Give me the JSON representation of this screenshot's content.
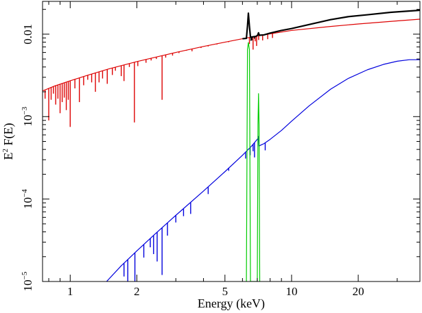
{
  "chart_data": {
    "type": "line",
    "title": "",
    "xlabel": "Energy (keV)",
    "ylabel_base": "E",
    "ylabel_sup": "2",
    "ylabel_rest": " F(E)",
    "xscale": "log",
    "yscale": "log",
    "xlim": [
      0.75,
      38
    ],
    "ylim": [
      1e-05,
      0.025
    ],
    "grid": false,
    "legend": "none",
    "x_ticks": [
      {
        "value": 1,
        "label": "1"
      },
      {
        "value": 2,
        "label": "2"
      },
      {
        "value": 5,
        "label": "5"
      },
      {
        "value": 10,
        "label": "10"
      },
      {
        "value": 20,
        "label": "20"
      }
    ],
    "x_minor_ticks": [
      0.8,
      0.9,
      3,
      4,
      6,
      7,
      8,
      9,
      30
    ],
    "y_ticks": [
      {
        "value": 0.01,
        "label_base": "0.01",
        "label_sup": ""
      },
      {
        "value": 0.001,
        "label_base": "10",
        "label_sup": "−3"
      },
      {
        "value": 0.0001,
        "label_base": "10",
        "label_sup": "−4"
      },
      {
        "value": 1e-05,
        "label_base": "10",
        "label_sup": "−5"
      }
    ],
    "y_minor_ticks": [
      2e-05,
      3e-05,
      4e-05,
      5e-05,
      6e-05,
      7e-05,
      8e-05,
      9e-05,
      0.0002,
      0.0003,
      0.0004,
      0.0005,
      0.0006,
      0.0007,
      0.0008,
      0.0009,
      0.002,
      0.003,
      0.004,
      0.005,
      0.006,
      0.007,
      0.008,
      0.009,
      0.02
    ],
    "series": [
      {
        "color": "#dd0000",
        "width": 1.2,
        "points": [
          [
            0.75,
            0.00205
          ],
          [
            0.85,
            0.00235
          ],
          [
            1.0,
            0.00272
          ],
          [
            1.2,
            0.00318
          ],
          [
            1.5,
            0.0038
          ],
          [
            2.0,
            0.00465
          ],
          [
            2.5,
            0.00535
          ],
          [
            3.0,
            0.006
          ],
          [
            4.0,
            0.0071
          ],
          [
            5.0,
            0.008
          ],
          [
            6.0,
            0.0088
          ],
          [
            7.0,
            0.0095
          ],
          [
            8.0,
            0.0101
          ],
          [
            10.0,
            0.0111
          ],
          [
            15.0,
            0.0124
          ],
          [
            20.0,
            0.0133
          ],
          [
            30.0,
            0.0145
          ],
          [
            38.0,
            0.0152
          ]
        ],
        "absorption_lines": [
          [
            0.77,
            0.00165
          ],
          [
            0.8,
            0.0009
          ],
          [
            0.82,
            0.0016
          ],
          [
            0.84,
            0.0019
          ],
          [
            0.86,
            0.0014
          ],
          [
            0.88,
            0.00165
          ],
          [
            0.9,
            0.0011
          ],
          [
            0.92,
            0.0015
          ],
          [
            0.94,
            0.0017
          ],
          [
            0.96,
            0.0012
          ],
          [
            0.98,
            0.0016
          ],
          [
            1.0,
            0.00075
          ],
          [
            1.05,
            0.0022
          ],
          [
            1.1,
            0.0015
          ],
          [
            1.15,
            0.0024
          ],
          [
            1.2,
            0.0028
          ],
          [
            1.25,
            0.0026
          ],
          [
            1.3,
            0.002
          ],
          [
            1.35,
            0.0026
          ],
          [
            1.4,
            0.0029
          ],
          [
            1.47,
            0.0025
          ],
          [
            1.55,
            0.0032
          ],
          [
            1.6,
            0.0036
          ],
          [
            1.7,
            0.0031
          ],
          [
            1.75,
            0.0027
          ],
          [
            1.85,
            0.004
          ],
          [
            1.95,
            0.00085
          ],
          [
            2.02,
            0.0041
          ],
          [
            2.2,
            0.0045
          ],
          [
            2.32,
            0.0048
          ],
          [
            2.45,
            0.005
          ],
          [
            2.6,
            0.0016
          ],
          [
            2.7,
            0.0052
          ],
          [
            2.9,
            0.0055
          ],
          [
            3.1,
            0.0059
          ],
          [
            3.35,
            0.0063
          ],
          [
            3.55,
            0.0062
          ],
          [
            3.9,
            0.0068
          ],
          [
            4.2,
            0.0071
          ],
          [
            4.6,
            0.0075
          ],
          [
            5.2,
            0.008
          ],
          [
            6.45,
            0.0076
          ],
          [
            6.6,
            0.0085
          ],
          [
            6.7,
            0.0065
          ],
          [
            6.85,
            0.0082
          ],
          [
            6.95,
            0.0072
          ],
          [
            7.1,
            0.0085
          ],
          [
            7.4,
            0.0084
          ],
          [
            7.8,
            0.0087
          ],
          [
            8.2,
            0.009
          ]
        ]
      },
      {
        "color": "#0000dd",
        "width": 1.2,
        "points": [
          [
            1.46,
            1e-05
          ],
          [
            1.7,
            1.55e-05
          ],
          [
            2.0,
            2.35e-05
          ],
          [
            2.4,
            3.7e-05
          ],
          [
            3.0,
            6.35e-05
          ],
          [
            4.0,
            0.000125
          ],
          [
            5.0,
            0.000215
          ],
          [
            6.0,
            0.00034
          ],
          [
            6.6,
            0.00044
          ],
          [
            7.08,
            0.00055
          ],
          [
            7.1,
            0.000575
          ],
          [
            7.12,
            0.00044
          ],
          [
            7.5,
            0.00047
          ],
          [
            8.0,
            0.00053
          ],
          [
            9.0,
            0.00068
          ],
          [
            10.0,
            0.00088
          ],
          [
            12.0,
            0.00135
          ],
          [
            15.0,
            0.00215
          ],
          [
            18.0,
            0.0029
          ],
          [
            22.0,
            0.0037
          ],
          [
            26.0,
            0.0043
          ],
          [
            30.0,
            0.0047
          ],
          [
            34.0,
            0.0049
          ],
          [
            38.0,
            0.0049
          ]
        ],
        "absorption_lines": [
          [
            1.75,
            1.15e-05
          ],
          [
            1.82,
            1e-05
          ],
          [
            1.96,
            1e-05
          ],
          [
            2.15,
            1.95e-05
          ],
          [
            2.3,
            2.6e-05
          ],
          [
            2.38,
            2.15e-05
          ],
          [
            2.47,
            1.75e-05
          ],
          [
            2.6,
            1.2e-05
          ],
          [
            2.75,
            3.6e-05
          ],
          [
            3.0,
            5.2e-05
          ],
          [
            3.25,
            6.2e-05
          ],
          [
            3.5,
            6.6e-05
          ],
          [
            4.2,
            0.000115
          ],
          [
            5.2,
            0.00022
          ],
          [
            6.2,
            0.00031
          ],
          [
            6.5,
            0.00034
          ],
          [
            6.7,
            0.00038
          ],
          [
            6.8,
            0.00032
          ],
          [
            7.6,
            0.00039
          ]
        ]
      },
      {
        "color": "#00cc00",
        "width": 1.2,
        "points": [
          [
            6.25,
            1e-05
          ],
          [
            6.32,
            0.0065
          ],
          [
            6.38,
            0.0079
          ],
          [
            6.45,
            0.0065
          ],
          [
            6.52,
            1e-05
          ],
          [
            7.0,
            1e-05
          ],
          [
            7.05,
            0.0008
          ],
          [
            7.09,
            0.0019
          ],
          [
            7.13,
            0.0008
          ],
          [
            7.18,
            1e-05
          ]
        ]
      },
      {
        "color": "#000000",
        "width": 2.2,
        "points": [
          [
            6.0,
            0.0088
          ],
          [
            6.25,
            0.0089
          ],
          [
            6.32,
            0.0125
          ],
          [
            6.38,
            0.018
          ],
          [
            6.45,
            0.0125
          ],
          [
            6.52,
            0.0092
          ],
          [
            6.7,
            0.0093
          ],
          [
            6.9,
            0.0094
          ],
          [
            7.02,
            0.0097
          ],
          [
            7.09,
            0.0104
          ],
          [
            7.15,
            0.0097
          ],
          [
            7.5,
            0.0098
          ],
          [
            8.0,
            0.0103
          ],
          [
            9.0,
            0.0111
          ],
          [
            10.0,
            0.0117
          ],
          [
            12.0,
            0.0131
          ],
          [
            15.0,
            0.015
          ],
          [
            18.0,
            0.0163
          ],
          [
            22.0,
            0.0172
          ],
          [
            28.0,
            0.0184
          ],
          [
            38.0,
            0.0195
          ]
        ],
        "absorption_lines": [
          [
            6.55,
            0.0083
          ],
          [
            6.62,
            0.0084
          ],
          [
            6.8,
            0.0088
          ]
        ]
      }
    ]
  }
}
